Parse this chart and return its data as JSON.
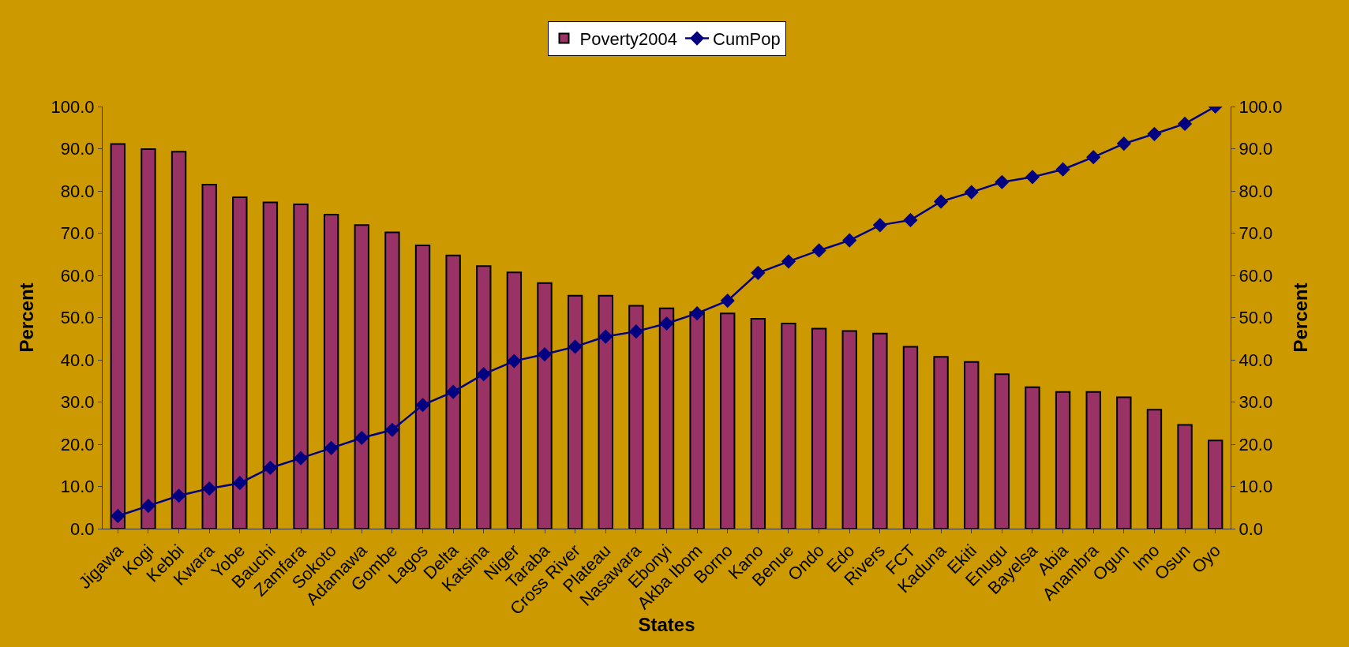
{
  "chart_data": {
    "type": "bar",
    "xlabel": "States",
    "ylabel": "Percent",
    "y2label": "Percent",
    "categories": [
      "Jigawa",
      "Kogi",
      "Kebbi",
      "Kwara",
      "Yobe",
      "Bauchi",
      "Zamfara",
      "Sokoto",
      "Adamawa",
      "Gombe",
      "Lagos",
      "Delta",
      "Katsina",
      "Niger",
      "Taraba",
      "Cross River",
      "Plateau",
      "Nasawara",
      "Ebonyi",
      "Akba Ibom",
      "Borno",
      "Kano",
      "Benue",
      "Ondo",
      "Edo",
      "Rivers",
      "FCT",
      "Kaduna",
      "Ekiti",
      "Enugu",
      "Bayelsa",
      "Abia",
      "Anambra",
      "Ogun",
      "Imo",
      "Osun",
      "Oyo"
    ],
    "series": [
      {
        "name": "Poverty2004",
        "color": "#993366",
        "values": [
          91.1,
          89.9,
          89.3,
          81.5,
          78.5,
          77.3,
          76.8,
          74.4,
          71.9,
          70.2,
          67.1,
          64.7,
          62.2,
          60.7,
          58.2,
          55.2,
          55.2,
          52.8,
          52.2,
          51.3,
          51.0,
          49.7,
          48.6,
          47.4,
          46.8,
          46.2,
          43.1,
          40.7,
          39.5,
          36.6,
          33.5,
          32.4,
          32.4,
          31.1,
          28.2,
          24.6,
          20.9
        ]
      },
      {
        "name": "CumPop",
        "type": "line",
        "axis": "y2",
        "color": "#000080",
        "marker": "diamond",
        "line_style": "solid",
        "values": [
          3.0,
          5.4,
          7.8,
          9.5,
          10.8,
          14.4,
          16.7,
          19.1,
          21.5,
          23.4,
          29.3,
          32.4,
          36.6,
          39.7,
          41.3,
          43.1,
          45.5,
          46.7,
          48.6,
          51.0,
          54.0,
          60.6,
          63.3,
          65.9,
          68.3,
          71.9,
          73.1,
          77.5,
          79.7,
          82.1,
          83.3,
          85.1,
          88.0,
          91.2,
          93.5,
          95.9,
          100.0
        ]
      }
    ],
    "ylim": [
      0,
      100
    ],
    "yticks": [
      {
        "value": 0,
        "label": "0.0"
      },
      {
        "value": 10,
        "label": "10.0"
      },
      {
        "value": 20,
        "label": "20.0"
      },
      {
        "value": 30,
        "label": "30.0"
      },
      {
        "value": 40,
        "label": "40.0"
      },
      {
        "value": 50,
        "label": "50.0"
      },
      {
        "value": 60,
        "label": "60.0"
      },
      {
        "value": 70,
        "label": "70.0"
      },
      {
        "value": 80,
        "label": "80.0"
      },
      {
        "value": 90,
        "label": "90.0"
      },
      {
        "value": 100,
        "label": "100.0"
      }
    ],
    "y2lim": [
      0,
      100
    ],
    "y2ticks": [
      {
        "value": 0,
        "label": "0.0"
      },
      {
        "value": 10,
        "label": "10.0"
      },
      {
        "value": 20,
        "label": "20.0"
      },
      {
        "value": 30,
        "label": "30.0"
      },
      {
        "value": 40,
        "label": "40.0"
      },
      {
        "value": 50,
        "label": "50.0"
      },
      {
        "value": 60,
        "label": "60.0"
      },
      {
        "value": 70,
        "label": "70.0"
      },
      {
        "value": 80,
        "label": "80.0"
      },
      {
        "value": 90,
        "label": "90.0"
      },
      {
        "value": 100,
        "label": "100.0"
      }
    ],
    "grid": false,
    "legend": "top"
  }
}
